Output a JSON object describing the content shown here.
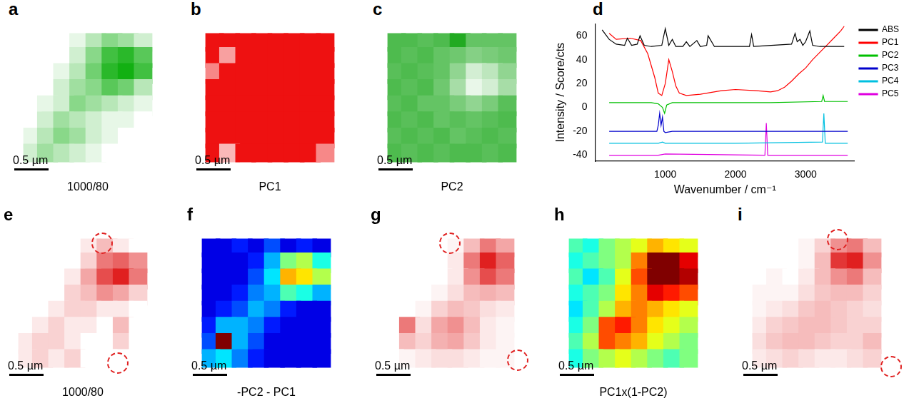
{
  "chart_data": [
    {
      "type": "heatmap",
      "panel": "a",
      "title": "1000/80",
      "scale_bar": "0.5 µm",
      "color": "#12b012",
      "tick_labels": false,
      "zlim": [
        0,
        1
      ],
      "cells": [
        [
          0,
          0,
          0,
          0.1,
          0.3,
          0.5,
          0.4,
          0.2
        ],
        [
          0,
          0,
          0,
          0.2,
          0.5,
          0.8,
          0.9,
          0.7
        ],
        [
          0,
          0,
          0.1,
          0.3,
          0.6,
          0.9,
          1,
          0.8
        ],
        [
          0,
          0,
          0.2,
          0.4,
          0.5,
          0.7,
          0.6,
          0.3
        ],
        [
          0,
          0.1,
          0.2,
          0.5,
          0.4,
          0.3,
          0.2,
          0.1
        ],
        [
          0,
          0.2,
          0.4,
          0.3,
          0.2,
          0.1,
          0.1,
          0
        ],
        [
          0.1,
          0.3,
          0.5,
          0.4,
          0.2,
          0.1,
          0,
          0
        ],
        [
          0.2,
          0.4,
          0.3,
          0.2,
          0.1,
          0,
          0,
          0
        ]
      ]
    },
    {
      "type": "heatmap",
      "panel": "b",
      "title": "PC1",
      "scale_bar": "0.5 µm",
      "color": "#ee1111",
      "tick_labels": false,
      "zlim": [
        0,
        1
      ],
      "cells": [
        [
          1,
          1,
          1,
          1,
          1,
          1,
          1,
          1
        ],
        [
          1,
          0.4,
          1,
          1,
          1,
          1,
          1,
          1
        ],
        [
          0.5,
          1,
          1,
          1,
          1,
          1,
          1,
          1
        ],
        [
          1,
          1,
          1,
          1,
          1,
          1,
          1,
          1
        ],
        [
          1,
          1,
          1,
          1,
          1,
          1,
          1,
          1
        ],
        [
          1,
          1,
          1,
          1,
          1,
          1,
          1,
          1
        ],
        [
          1,
          1,
          1,
          1,
          1,
          1,
          1,
          1
        ],
        [
          1,
          0.3,
          1,
          1,
          1,
          1,
          1,
          0.5
        ]
      ]
    },
    {
      "type": "heatmap",
      "panel": "c",
      "title": "PC2",
      "scale_bar": "0.5 µm",
      "color": "#22aa22",
      "tick_labels": false,
      "zlim": [
        0,
        1
      ],
      "cells": [
        [
          0.8,
          0.8,
          0.75,
          0.8,
          1,
          0.7,
          0.7,
          0.7
        ],
        [
          0.8,
          0.75,
          0.8,
          0.7,
          0.65,
          0.55,
          0.6,
          0.65
        ],
        [
          0.75,
          0.8,
          0.75,
          0.7,
          0.5,
          0.2,
          0.3,
          0.5
        ],
        [
          0.8,
          0.75,
          0.8,
          0.65,
          0.4,
          0.1,
          0.2,
          0.4
        ],
        [
          0.75,
          0.8,
          0.7,
          0.7,
          0.6,
          0.5,
          0.6,
          0.75
        ],
        [
          0.8,
          0.75,
          0.8,
          0.7,
          0.75,
          0.7,
          0.75,
          0.8
        ],
        [
          0.75,
          0.8,
          0.75,
          0.8,
          0.7,
          0.75,
          0.8,
          0.75
        ],
        [
          0.8,
          0.75,
          0.8,
          0.75,
          0.8,
          0.8,
          0.75,
          0.8
        ]
      ]
    },
    {
      "type": "line",
      "panel": "d",
      "xlabel": "Wavenumber / cm⁻¹",
      "ylabel": "Intensity / Score/cts",
      "xlim": [
        0,
        3700
      ],
      "xticks": [
        1000,
        2000,
        3000
      ],
      "ylim": [
        -45,
        70
      ],
      "yticks": [
        -40,
        -20,
        0,
        20,
        40,
        60
      ],
      "grid": false,
      "legend": "right",
      "series": [
        {
          "name": "ABS",
          "color": "#000000",
          "x": [
            100,
            200,
            300,
            420,
            460,
            520,
            600,
            640,
            700,
            800,
            950,
            1000,
            1050,
            1100,
            1150,
            1250,
            1300,
            1350,
            1450,
            1500,
            1590,
            1610,
            1700,
            2200,
            2230,
            2260,
            2800,
            2850,
            2880,
            2920,
            2960,
            3000,
            3060,
            3100,
            3200,
            3550
          ],
          "values": [
            65,
            57,
            53,
            52,
            58,
            52,
            53,
            60,
            52,
            51,
            52,
            66,
            52,
            57,
            51,
            51,
            55,
            51,
            56,
            51,
            52,
            60,
            51,
            51,
            61,
            51,
            53,
            62,
            55,
            57,
            52,
            55,
            64,
            52,
            51,
            51
          ]
        },
        {
          "name": "PC1",
          "color": "#ff0000",
          "x": [
            200,
            300,
            500,
            650,
            750,
            850,
            900,
            950,
            1000,
            1050,
            1100,
            1150,
            1200,
            1300,
            1500,
            1800,
            2000,
            2300,
            2500,
            2600,
            2700,
            2800,
            2900,
            3000,
            3100,
            3200,
            3300,
            3400,
            3500,
            3550
          ],
          "values": [
            62,
            57,
            58,
            56,
            45,
            25,
            12,
            10,
            20,
            40,
            30,
            18,
            12,
            10,
            11,
            14,
            15,
            14,
            13,
            14,
            17,
            22,
            28,
            33,
            40,
            46,
            52,
            58,
            64,
            68
          ]
        },
        {
          "name": "PC2",
          "color": "#00c000",
          "x": [
            200,
            800,
            900,
            960,
            990,
            1020,
            1100,
            1500,
            2500,
            3230,
            3250,
            3270,
            3600
          ],
          "values": [
            4,
            4,
            3,
            0,
            -5,
            2,
            4,
            4,
            4,
            5,
            10,
            5,
            5
          ]
        },
        {
          "name": "PC3",
          "color": "#0000cc",
          "x": [
            200,
            880,
            900,
            920,
            940,
            960,
            980,
            1000,
            1100,
            3600
          ],
          "values": [
            -20,
            -20,
            -15,
            -5,
            -15,
            -8,
            -20,
            -21,
            -20,
            -20
          ]
        },
        {
          "name": "PC4",
          "color": "#00c0e0",
          "x": [
            200,
            900,
            960,
            1000,
            2000,
            3240,
            3260,
            3280,
            3600
          ],
          "values": [
            -30,
            -30,
            -29,
            -30,
            -30,
            -29,
            -5,
            -30,
            -30
          ]
        },
        {
          "name": "PC5",
          "color": "#e000e0",
          "x": [
            200,
            900,
            1000,
            2420,
            2440,
            2460,
            3600
          ],
          "values": [
            -40,
            -40,
            -39,
            -40,
            -13,
            -40,
            -40
          ]
        }
      ]
    },
    {
      "type": "heatmap",
      "panel": "e",
      "title": "1000/80",
      "scale_bar": "0.5 µm",
      "color": "#e02020",
      "tick_labels": false,
      "zlim": [
        0,
        1
      ],
      "cells": [
        [
          0,
          0,
          0,
          0,
          0.1,
          0.3,
          0.1,
          0
        ],
        [
          0,
          0,
          0,
          0,
          0.2,
          0.6,
          0.7,
          0.5
        ],
        [
          0,
          0,
          0,
          0.1,
          0.4,
          0.8,
          1,
          0.6
        ],
        [
          0,
          0,
          0,
          0.2,
          0.3,
          0.5,
          0.4,
          0.2
        ],
        [
          0,
          0,
          0.1,
          0.2,
          0.2,
          0.1,
          0.1,
          0
        ],
        [
          0,
          0.1,
          0.2,
          0.1,
          0.1,
          0,
          0.3,
          0
        ],
        [
          0.1,
          0.2,
          0.2,
          0.1,
          0,
          0,
          0.2,
          0
        ],
        [
          0.1,
          0.2,
          0.1,
          0.2,
          0,
          0,
          0,
          0
        ]
      ]
    },
    {
      "type": "heatmap",
      "panel": "f",
      "title": "-PC2 - PC1",
      "scale_bar": "0.5 µm",
      "color": "jet",
      "tick_labels": false,
      "zlim": [
        0,
        1
      ],
      "cells": [
        [
          0.1,
          0.1,
          0.15,
          0.1,
          0.2,
          0.1,
          0.15,
          0.1
        ],
        [
          0.1,
          0.1,
          0.1,
          0.15,
          0.3,
          0.5,
          0.55,
          0.4
        ],
        [
          0.1,
          0.1,
          0.1,
          0.2,
          0.35,
          0.7,
          0.65,
          0.55
        ],
        [
          0.1,
          0.1,
          0.15,
          0.25,
          0.3,
          0.45,
          0.4,
          0.3
        ],
        [
          0.1,
          0.15,
          0.2,
          0.3,
          0.25,
          0.15,
          0.1,
          0.1
        ],
        [
          0.15,
          0.3,
          0.3,
          0.25,
          0.15,
          0.1,
          0.1,
          0.1
        ],
        [
          0.2,
          1,
          0.3,
          0.2,
          0.1,
          0.1,
          0.1,
          0.1
        ],
        [
          0.3,
          0.35,
          0.25,
          0.15,
          0.1,
          0.1,
          0.1,
          0.1
        ]
      ]
    },
    {
      "type": "heatmap",
      "panel": "g",
      "scale_bar": "0.5 µm",
      "color": "#e02020",
      "tick_labels": false,
      "zlim": [
        0,
        1
      ],
      "cells": [
        [
          0,
          0,
          0,
          0,
          0.05,
          0.3,
          0.6,
          0.4
        ],
        [
          0,
          0,
          0,
          0,
          0.1,
          0.6,
          1,
          0.7
        ],
        [
          0,
          0,
          0,
          0,
          0.1,
          0.5,
          0.8,
          0.6
        ],
        [
          0,
          0,
          0,
          0.05,
          0.15,
          0.3,
          0.35,
          0.3
        ],
        [
          0,
          0,
          0.05,
          0.2,
          0.3,
          0.25,
          0.15,
          0.1
        ],
        [
          0,
          0.6,
          0.15,
          0.4,
          0.5,
          0.3,
          0.1,
          0.05
        ],
        [
          0,
          0.3,
          0.2,
          0.35,
          0.4,
          0.25,
          0.1,
          0.05
        ],
        [
          0,
          0.05,
          0.1,
          0.15,
          0.15,
          0.1,
          0.05,
          0.05
        ]
      ]
    },
    {
      "type": "heatmap",
      "panel": "h",
      "title": "PC1x(1-PC2)",
      "scale_bar": "0.5 µm",
      "color": "jet",
      "tick_labels": false,
      "zlim": [
        0,
        1
      ],
      "cells": [
        [
          0.45,
          0.4,
          0.5,
          0.55,
          0.6,
          0.7,
          0.65,
          0.6
        ],
        [
          0.4,
          0.45,
          0.5,
          0.55,
          0.75,
          1,
          1,
          0.9
        ],
        [
          0.45,
          0.35,
          0.45,
          0.6,
          0.8,
          1,
          1,
          0.95
        ],
        [
          0.4,
          0.45,
          0.5,
          0.65,
          0.75,
          0.9,
          0.85,
          0.8
        ],
        [
          0.35,
          0.45,
          0.55,
          0.7,
          0.75,
          0.7,
          0.65,
          0.6
        ],
        [
          0.4,
          0.5,
          0.8,
          0.85,
          0.75,
          0.65,
          0.6,
          0.55
        ],
        [
          0.45,
          0.55,
          0.8,
          0.75,
          0.7,
          0.6,
          0.55,
          0.5
        ],
        [
          0.4,
          0.5,
          0.55,
          0.6,
          0.55,
          0.5,
          0.45,
          0.5
        ]
      ]
    },
    {
      "type": "heatmap",
      "panel": "i",
      "scale_bar": "0.5 µm",
      "color": "#e02020",
      "tick_labels": false,
      "zlim": [
        0,
        1
      ],
      "cells": [
        [
          0,
          0,
          0,
          0.05,
          0.2,
          0.5,
          0.6,
          0.3
        ],
        [
          0,
          0,
          0,
          0.05,
          0.3,
          0.9,
          1,
          0.5
        ],
        [
          0,
          0.05,
          0,
          0.1,
          0.3,
          0.5,
          0.6,
          0.3
        ],
        [
          0.05,
          0.05,
          0.05,
          0.15,
          0.25,
          0.3,
          0.3,
          0.2
        ],
        [
          0.05,
          0.1,
          0.15,
          0.25,
          0.3,
          0.25,
          0.2,
          0.15
        ],
        [
          0.1,
          0.2,
          0.25,
          0.3,
          0.3,
          0.25,
          0.2,
          0.2
        ],
        [
          0.15,
          0.25,
          0.3,
          0.3,
          0.25,
          0.2,
          0.2,
          0.3
        ],
        [
          0.1,
          0.15,
          0.2,
          0.15,
          0.1,
          0.1,
          0.15,
          0.2
        ]
      ]
    }
  ]
}
